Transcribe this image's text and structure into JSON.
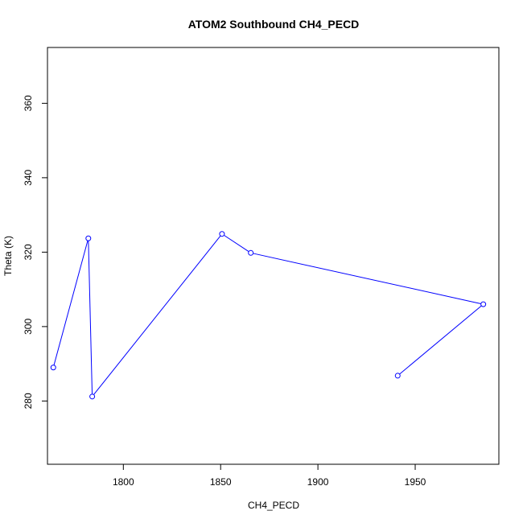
{
  "chart_data": {
    "type": "line",
    "title": "ATOM2 Southbound CH4_PECD",
    "xlabel": "CH4_PECD",
    "ylabel": "Theta (K)",
    "xlim": [
      1761,
      1993
    ],
    "ylim": [
      263,
      375
    ],
    "xticks": [
      1800,
      1850,
      1900,
      1950
    ],
    "yticks": [
      280,
      300,
      320,
      340,
      360
    ],
    "grid": false,
    "legend": "none",
    "series": [
      {
        "color": "#0000ff",
        "points": [
          {
            "x": 1764,
            "y": 289
          },
          {
            "x": 1782,
            "y": 323.7
          },
          {
            "x": 1784,
            "y": 281.2
          },
          {
            "x": 1850.7,
            "y": 324.9
          },
          {
            "x": 1865.5,
            "y": 319.8
          },
          {
            "x": 1985,
            "y": 306
          },
          {
            "x": 1941,
            "y": 286.8
          }
        ]
      }
    ]
  }
}
